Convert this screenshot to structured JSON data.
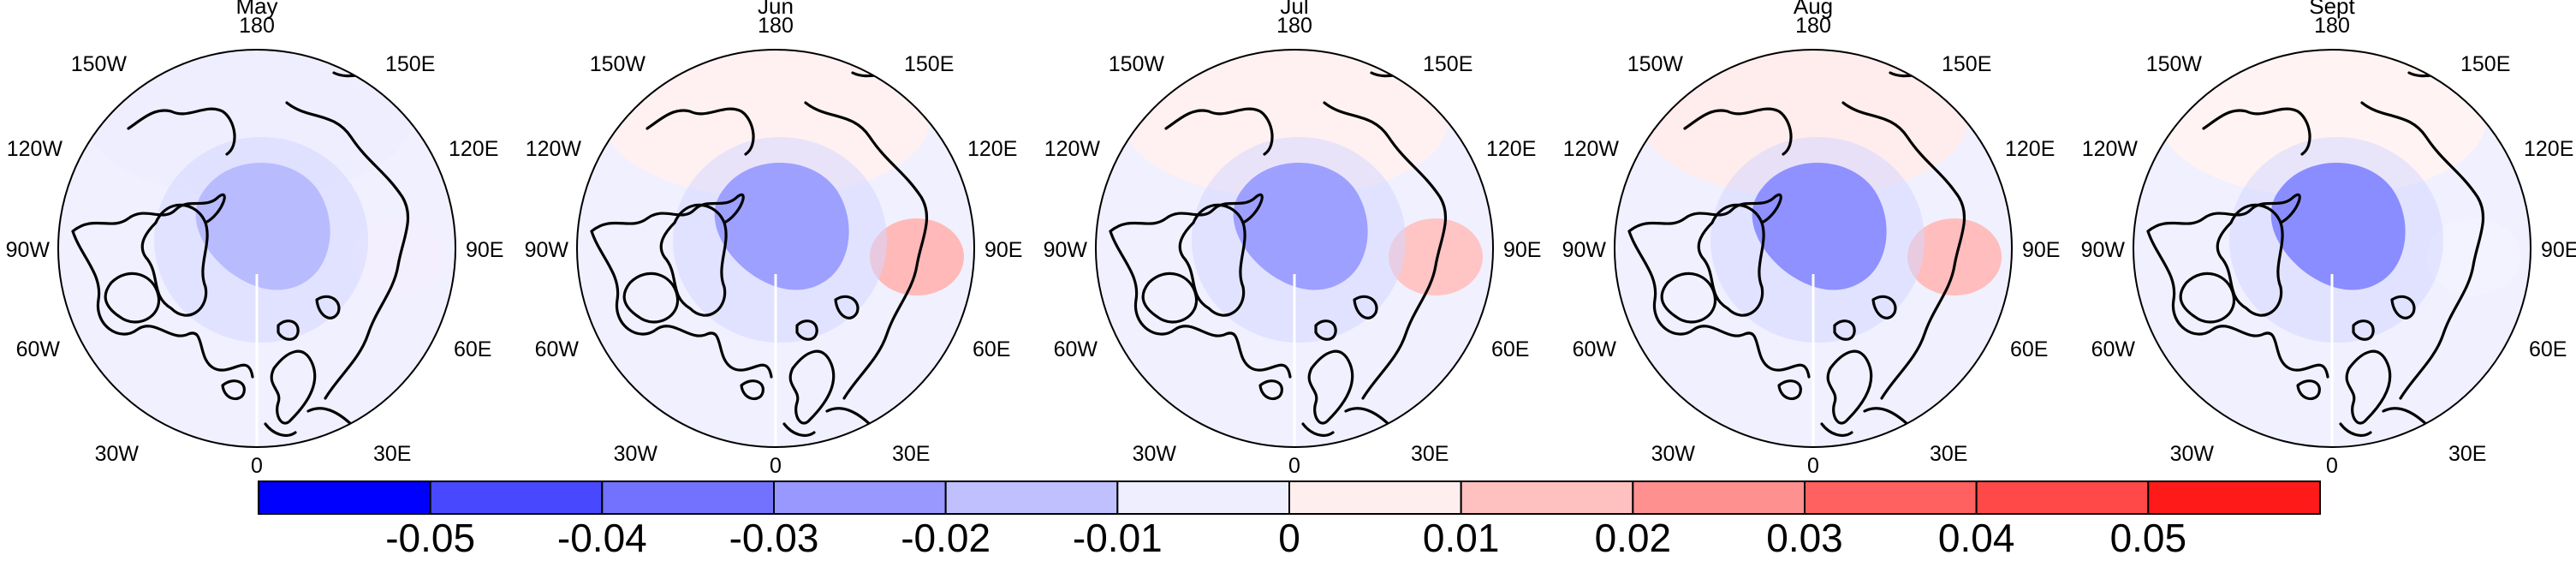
{
  "maps": [
    {
      "title": "May",
      "labels": {
        "n180": "180",
        "w150": "150W",
        "e150": "150E",
        "w120": "120W",
        "e120": "120E",
        "w90": "90W",
        "e90": "90E",
        "w60": "60W",
        "e60": "60E",
        "w30": "30W",
        "e30": "30E",
        "n0": "0"
      },
      "central_anomaly_color": "#b9bbff",
      "pacific_anomaly_color": "#eeeeff",
      "eurasia_anomaly_color": "#f3efff"
    },
    {
      "title": "Jun",
      "labels": {
        "n180": "180",
        "w150": "150W",
        "e150": "150E",
        "w120": "120W",
        "e120": "120E",
        "w90": "90W",
        "e90": "90E",
        "w60": "60W",
        "e60": "60E",
        "w30": "30W",
        "e30": "30E",
        "n0": "0"
      },
      "central_anomaly_color": "#9da0ff",
      "pacific_anomaly_color": "#fff1f1",
      "eurasia_anomaly_color": "#ffb9b9"
    },
    {
      "title": "Jul",
      "labels": {
        "n180": "180",
        "w150": "150W",
        "e150": "150E",
        "w120": "120W",
        "e120": "120E",
        "w90": "90W",
        "e90": "90E",
        "w60": "60W",
        "e60": "60E",
        "w30": "30W",
        "e30": "30E",
        "n0": "0"
      },
      "central_anomaly_color": "#9da0ff",
      "pacific_anomaly_color": "#fff1f1",
      "eurasia_anomaly_color": "#ffc4c4"
    },
    {
      "title": "Aug",
      "labels": {
        "n180": "180",
        "w150": "150W",
        "e150": "150E",
        "w120": "120W",
        "e120": "120E",
        "w90": "90W",
        "e90": "90E",
        "w60": "60W",
        "e60": "60E",
        "w30": "30W",
        "e30": "30E",
        "n0": "0"
      },
      "central_anomaly_color": "#8e91ff",
      "pacific_anomaly_color": "#ffecec",
      "eurasia_anomaly_color": "#ffbdbd"
    },
    {
      "title": "Sept",
      "labels": {
        "n180": "180",
        "w150": "150W",
        "e150": "150E",
        "w120": "120W",
        "e120": "120E",
        "w90": "90W",
        "e90": "90E",
        "w60": "60W",
        "e60": "60E",
        "w30": "30W",
        "e30": "30E",
        "n0": "0"
      },
      "central_anomaly_color": "#8a8dff",
      "pacific_anomaly_color": "#fff3f3",
      "eurasia_anomaly_color": "#f3f3ff"
    }
  ],
  "colorbar": {
    "colors": [
      "#0000ff",
      "#4848ff",
      "#7272ff",
      "#9898ff",
      "#c0c0ff",
      "#eeeeff",
      "#ffeeee",
      "#ffc0c0",
      "#ff9090",
      "#ff6060",
      "#ff4848",
      "#ff1a1a"
    ],
    "tick_labels": [
      "-0.05",
      "-0.04",
      "-0.03",
      "-0.02",
      "-0.01",
      "0",
      "0.01",
      "0.02",
      "0.03",
      "0.04",
      "0.05"
    ]
  },
  "colors": {
    "ocean_background": "#f0f0ff",
    "coastline": "#000000"
  }
}
